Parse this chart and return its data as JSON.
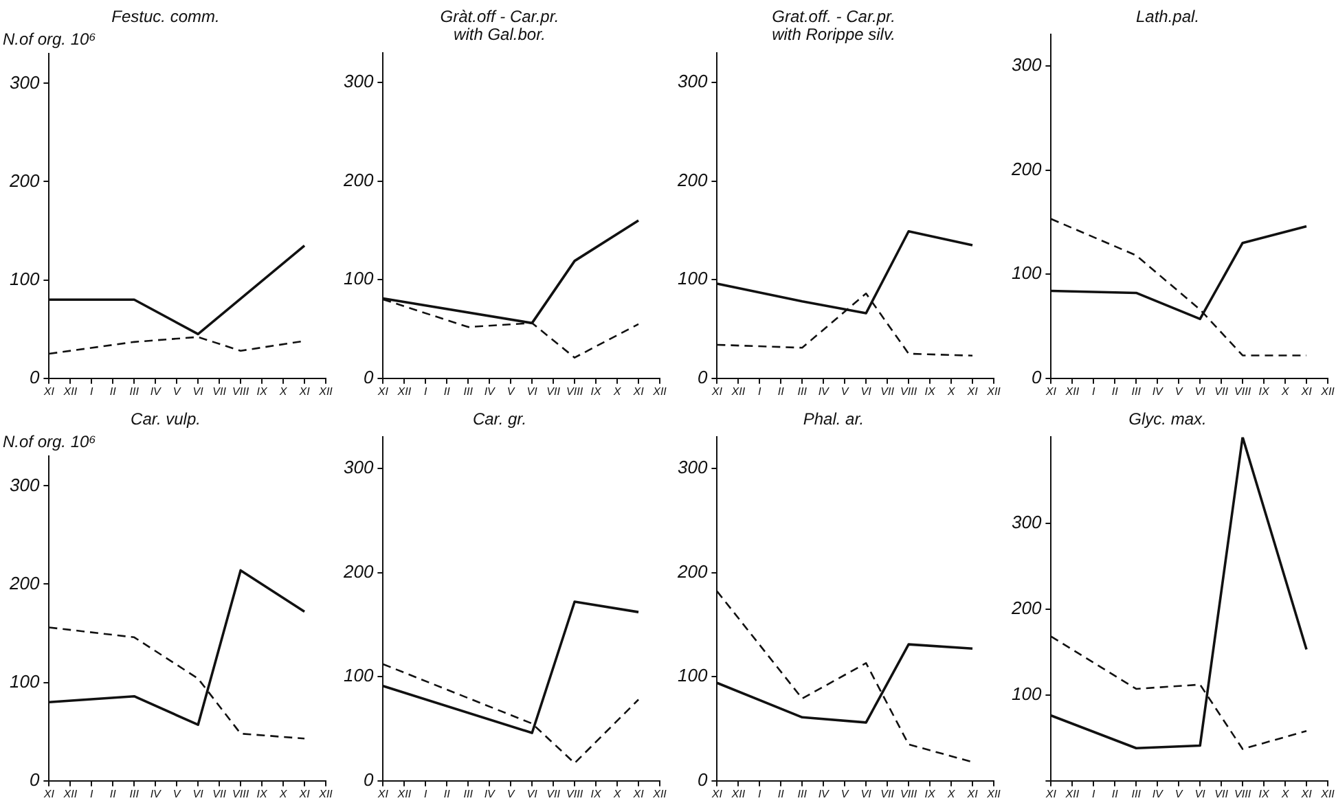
{
  "chart_data": [
    {
      "type": "line",
      "title": "Festuc. comm.",
      "ylabel": "N.of org. 10⁶",
      "categories": [
        "XI",
        "XII",
        "I",
        "II",
        "III",
        "IV",
        "V",
        "VI",
        "VII",
        "VIII",
        "IX",
        "X",
        "XI",
        "XII"
      ],
      "ylim": [
        0,
        330
      ],
      "yticks": [
        0,
        100,
        200,
        300
      ],
      "grid": false,
      "legend": false,
      "series": [
        {
          "color": "#111111",
          "line_style": "solid",
          "values": [
            80,
            null,
            null,
            null,
            80,
            null,
            null,
            45,
            null,
            null,
            null,
            null,
            135,
            null
          ]
        },
        {
          "color": "#111111",
          "line_style": "dashed",
          "values": [
            25,
            null,
            null,
            null,
            37,
            null,
            null,
            42,
            null,
            28,
            null,
            null,
            38,
            null
          ]
        }
      ]
    },
    {
      "type": "line",
      "title": "Gràt.off - Car.pr.\nwith Gal.bor.",
      "categories": [
        "XI",
        "XII",
        "I",
        "II",
        "III",
        "IV",
        "V",
        "VI",
        "VII",
        "VIII",
        "IX",
        "X",
        "XI",
        "XII"
      ],
      "ylim": [
        0,
        330
      ],
      "yticks": [
        0,
        100,
        200,
        300
      ],
      "grid": false,
      "legend": false,
      "series": [
        {
          "color": "#111111",
          "line_style": "solid",
          "values": [
            81,
            null,
            null,
            null,
            null,
            null,
            null,
            56,
            null,
            119,
            null,
            null,
            160,
            null
          ]
        },
        {
          "color": "#111111",
          "line_style": "dashed",
          "values": [
            80,
            null,
            null,
            null,
            52,
            null,
            null,
            56,
            null,
            21,
            null,
            null,
            55,
            null
          ]
        }
      ]
    },
    {
      "type": "line",
      "title": "Grat.off. - Car.pr.\nwith Rorippe silv.",
      "categories": [
        "XI",
        "XII",
        "I",
        "II",
        "III",
        "IV",
        "V",
        "VI",
        "VII",
        "VIII",
        "IX",
        "X",
        "XI",
        "XII"
      ],
      "ylim": [
        0,
        330
      ],
      "yticks": [
        0,
        100,
        200,
        300
      ],
      "grid": false,
      "legend": false,
      "series": [
        {
          "color": "#111111",
          "line_style": "solid",
          "values": [
            96,
            null,
            null,
            null,
            78,
            null,
            null,
            66,
            null,
            149,
            null,
            null,
            135,
            null
          ]
        },
        {
          "color": "#111111",
          "line_style": "dashed",
          "values": [
            34,
            null,
            null,
            null,
            31,
            null,
            null,
            86,
            null,
            25,
            null,
            null,
            23,
            null
          ]
        }
      ]
    },
    {
      "type": "line",
      "title": "Lath.pal.",
      "categories": [
        "XI",
        "XII",
        "I",
        "II",
        "III",
        "IV",
        "V",
        "VI",
        "VII",
        "VIII",
        "IX",
        "X",
        "XI",
        "XII"
      ],
      "ylim": [
        0,
        330
      ],
      "yticks": [
        0,
        100,
        200,
        300
      ],
      "grid": false,
      "legend": false,
      "series": [
        {
          "color": "#111111",
          "line_style": "solid",
          "values": [
            84,
            null,
            null,
            null,
            82,
            null,
            null,
            57,
            null,
            130,
            null,
            null,
            146,
            null
          ]
        },
        {
          "color": "#111111",
          "line_style": "dashed",
          "values": [
            153,
            null,
            null,
            null,
            118,
            null,
            null,
            66,
            null,
            22,
            null,
            null,
            22,
            null
          ]
        }
      ]
    },
    {
      "type": "line",
      "title": "Car. vulp.",
      "ylabel": "N.of org. 10⁶",
      "categories": [
        "XI",
        "XII",
        "I",
        "II",
        "III",
        "IV",
        "V",
        "VI",
        "VII",
        "VIII",
        "IX",
        "X",
        "XI",
        "XII"
      ],
      "ylim": [
        0,
        330
      ],
      "yticks": [
        0,
        100,
        200,
        300
      ],
      "grid": false,
      "legend": false,
      "series": [
        {
          "color": "#111111",
          "line_style": "solid",
          "values": [
            80,
            null,
            null,
            null,
            86,
            null,
            null,
            57,
            null,
            214,
            null,
            null,
            172,
            null
          ]
        },
        {
          "color": "#111111",
          "line_style": "dashed",
          "values": [
            156,
            null,
            null,
            null,
            146,
            null,
            null,
            104,
            null,
            48,
            null,
            null,
            43,
            null
          ]
        }
      ]
    },
    {
      "type": "line",
      "title": "Car. gr.",
      "categories": [
        "XI",
        "XII",
        "I",
        "II",
        "III",
        "IV",
        "V",
        "VI",
        "VII",
        "VIII",
        "IX",
        "X",
        "XI",
        "XII"
      ],
      "ylim": [
        0,
        330
      ],
      "yticks": [
        0,
        100,
        200,
        300
      ],
      "grid": false,
      "legend": false,
      "series": [
        {
          "color": "#111111",
          "line_style": "solid",
          "values": [
            91,
            null,
            null,
            null,
            null,
            null,
            null,
            46,
            null,
            172,
            null,
            null,
            162,
            null
          ]
        },
        {
          "color": "#111111",
          "line_style": "dashed",
          "values": [
            112,
            null,
            null,
            null,
            null,
            null,
            null,
            55,
            null,
            17,
            null,
            null,
            78,
            null
          ]
        }
      ]
    },
    {
      "type": "line",
      "title": "Phal. ar.",
      "categories": [
        "XI",
        "XII",
        "I",
        "II",
        "III",
        "IV",
        "V",
        "VI",
        "VII",
        "VIII",
        "IX",
        "X",
        "XI",
        "XII"
      ],
      "ylim": [
        0,
        330
      ],
      "yticks": [
        0,
        100,
        200,
        300
      ],
      "grid": false,
      "legend": false,
      "series": [
        {
          "color": "#111111",
          "line_style": "solid",
          "values": [
            94,
            null,
            null,
            null,
            61,
            null,
            null,
            56,
            null,
            131,
            null,
            null,
            127,
            null
          ]
        },
        {
          "color": "#111111",
          "line_style": "dashed",
          "values": [
            182,
            null,
            null,
            null,
            79,
            null,
            null,
            113,
            null,
            35,
            null,
            null,
            18,
            null
          ]
        }
      ]
    },
    {
      "type": "line",
      "title": "Glyc. max.",
      "categories": [
        "XI",
        "XII",
        "I",
        "II",
        "III",
        "IV",
        "V",
        "VI",
        "VII",
        "VIII",
        "IX",
        "X",
        "XI",
        "XII"
      ],
      "ylim": [
        0,
        400
      ],
      "yticks": [
        {
          "value": 0,
          "label": null
        },
        100,
        200,
        300
      ],
      "grid": false,
      "legend": false,
      "series": [
        {
          "color": "#111111",
          "line_style": "solid",
          "values": [
            76,
            null,
            null,
            null,
            38,
            null,
            null,
            41,
            null,
            400,
            null,
            null,
            153,
            null
          ]
        },
        {
          "color": "#111111",
          "line_style": "dashed",
          "values": [
            168,
            null,
            null,
            null,
            107,
            null,
            null,
            112,
            null,
            37,
            null,
            null,
            58,
            null
          ]
        }
      ]
    }
  ]
}
